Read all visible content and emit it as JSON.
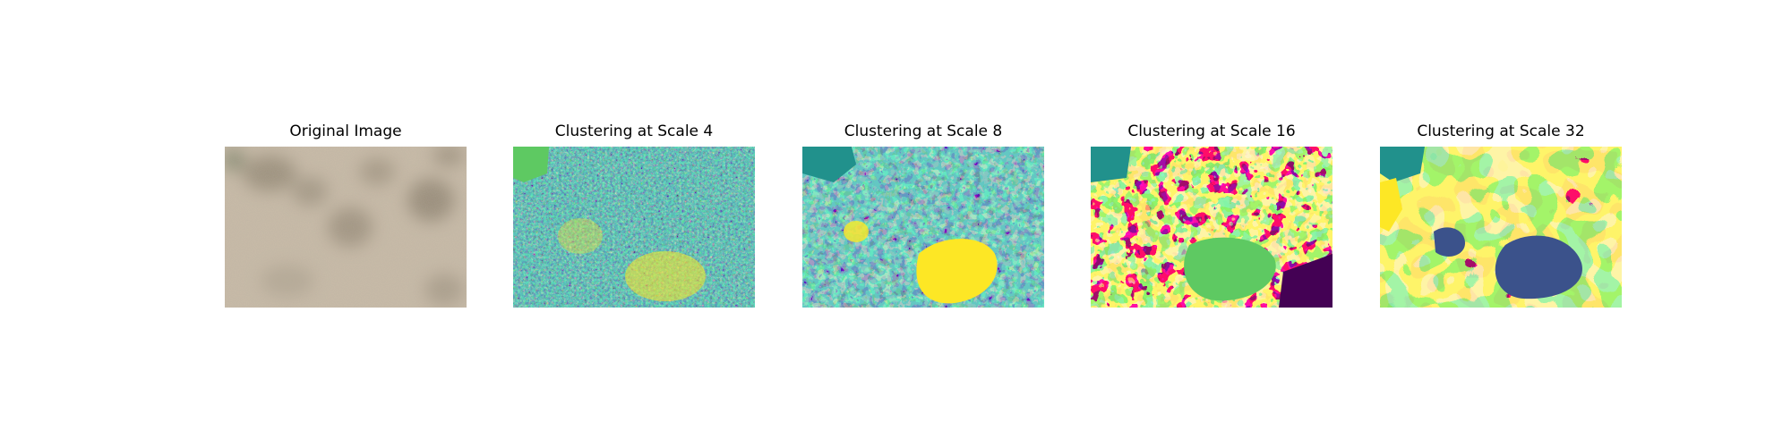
{
  "palette": {
    "dark_purple": "#440154",
    "blue": "#3b528b",
    "teal": "#21918c",
    "green": "#5ec962",
    "yellow": "#fde725"
  },
  "panels": [
    {
      "title": "Original Image"
    },
    {
      "title": "Clustering at Scale 4"
    },
    {
      "title": "Clustering at Scale 8"
    },
    {
      "title": "Clustering at Scale 16"
    },
    {
      "title": "Clustering at Scale 32"
    }
  ]
}
